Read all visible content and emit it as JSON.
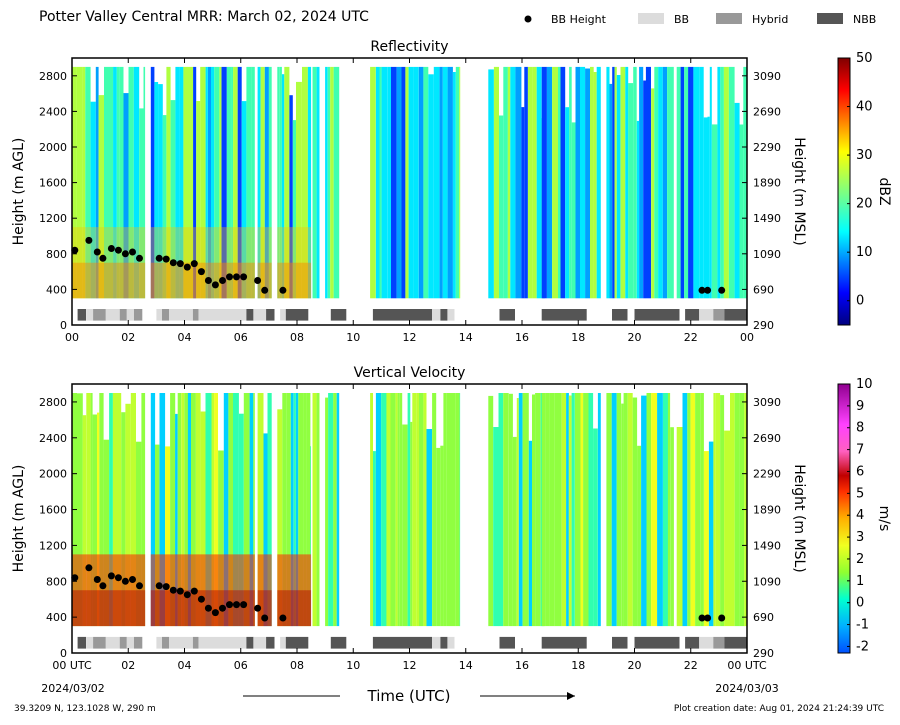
{
  "title": "Potter Valley Central MRR:  March 02, 2024 UTC",
  "legend": [
    {
      "label": "BB Height",
      "kind": "dot",
      "color": "#000000"
    },
    {
      "label": "BB",
      "kind": "box",
      "color": "#dcdcdc"
    },
    {
      "label": "Hybrid",
      "kind": "box",
      "color": "#999999"
    },
    {
      "label": "NBB",
      "kind": "box",
      "color": "#555555"
    }
  ],
  "footer": {
    "coords": "39.3209 N, 123.1028 W, 290 m",
    "created": "Plot creation date: Aug 01, 2024 21:24:39 UTC"
  },
  "chart_data": [
    {
      "type": "heatmap",
      "title": "Reflectivity",
      "ylabel": "Height (m AGL)",
      "ylabel_right": "Height (m MSL)",
      "xlim": [
        0,
        24
      ],
      "ylim": [
        0,
        3000
      ],
      "x_ticks": [
        "00",
        "02",
        "04",
        "06",
        "08",
        "10",
        "12",
        "14",
        "16",
        "18",
        "20",
        "22",
        "00"
      ],
      "y_ticks": [
        0,
        400,
        800,
        1200,
        1600,
        2000,
        2400,
        2800
      ],
      "y_ticks_right": [
        290,
        690,
        1090,
        1490,
        1890,
        2290,
        2690,
        3090
      ],
      "colorbar": {
        "label": "dBZ",
        "min": -5,
        "max": 50,
        "ticks": [
          0,
          10,
          20,
          30,
          40,
          50
        ],
        "palette": "jet"
      }
    },
    {
      "type": "heatmap",
      "title": "Vertical Velocity",
      "ylabel": "Height (m AGL)",
      "ylabel_right": "Height (m MSL)",
      "xlabel": "Time (UTC)",
      "xlim": [
        0,
        24
      ],
      "ylim": [
        0,
        3000
      ],
      "x_ticks": [
        "00 UTC",
        "02",
        "04",
        "06",
        "08",
        "10",
        "12",
        "14",
        "16",
        "18",
        "20",
        "22",
        "00 UTC"
      ],
      "x_dates": [
        "2024/03/02",
        "2024/03/03"
      ],
      "y_ticks": [
        0,
        400,
        800,
        1200,
        1600,
        2000,
        2400,
        2800
      ],
      "y_ticks_right": [
        290,
        690,
        1090,
        1490,
        1890,
        2290,
        2690,
        3090
      ],
      "colorbar": {
        "label": "m/s",
        "min": -2.3,
        "max": 10,
        "ticks": [
          -2,
          -1,
          0,
          1,
          2,
          3,
          4,
          5,
          6,
          7,
          8,
          9,
          10
        ],
        "palette": "velocity"
      }
    }
  ],
  "bright_band_heights": {
    "times": [
      0.1,
      0.6,
      0.9,
      1.1,
      1.4,
      1.65,
      1.9,
      2.15,
      2.4,
      3.1,
      3.35,
      3.6,
      3.85,
      4.1,
      4.35,
      4.6,
      4.85,
      5.1,
      5.35,
      5.6,
      5.85,
      6.1,
      6.6,
      6.85,
      7.5,
      22.4,
      22.6,
      23.1
    ],
    "heights": [
      840,
      950,
      820,
      750,
      860,
      840,
      800,
      820,
      750,
      750,
      740,
      700,
      690,
      650,
      690,
      600,
      500,
      450,
      500,
      540,
      540,
      540,
      500,
      390,
      390,
      390,
      390,
      390
    ]
  },
  "bb_type_segments": [
    {
      "start": 0.2,
      "end": 0.5,
      "type": "NBB"
    },
    {
      "start": 0.5,
      "end": 0.75,
      "type": "BB"
    },
    {
      "start": 0.75,
      "end": 1.2,
      "type": "Hybrid"
    },
    {
      "start": 1.2,
      "end": 1.7,
      "type": "BB"
    },
    {
      "start": 1.7,
      "end": 1.95,
      "type": "Hybrid"
    },
    {
      "start": 1.95,
      "end": 2.2,
      "type": "BB"
    },
    {
      "start": 2.2,
      "end": 2.5,
      "type": "Hybrid"
    },
    {
      "start": 3.0,
      "end": 3.2,
      "type": "BB"
    },
    {
      "start": 3.2,
      "end": 3.45,
      "type": "Hybrid"
    },
    {
      "start": 3.45,
      "end": 4.3,
      "type": "BB"
    },
    {
      "start": 4.3,
      "end": 4.5,
      "type": "Hybrid"
    },
    {
      "start": 4.5,
      "end": 6.2,
      "type": "BB"
    },
    {
      "start": 6.2,
      "end": 6.45,
      "type": "NBB"
    },
    {
      "start": 6.45,
      "end": 6.9,
      "type": "BB"
    },
    {
      "start": 6.9,
      "end": 7.2,
      "type": "NBB"
    },
    {
      "start": 7.4,
      "end": 7.6,
      "type": "BB"
    },
    {
      "start": 7.6,
      "end": 8.4,
      "type": "NBB"
    },
    {
      "start": 9.2,
      "end": 9.75,
      "type": "NBB"
    },
    {
      "start": 10.7,
      "end": 12.8,
      "type": "NBB"
    },
    {
      "start": 12.8,
      "end": 13.1,
      "type": "BB"
    },
    {
      "start": 13.1,
      "end": 13.35,
      "type": "NBB"
    },
    {
      "start": 13.35,
      "end": 13.6,
      "type": "BB"
    },
    {
      "start": 15.2,
      "end": 15.75,
      "type": "NBB"
    },
    {
      "start": 16.7,
      "end": 18.3,
      "type": "NBB"
    },
    {
      "start": 19.2,
      "end": 19.75,
      "type": "NBB"
    },
    {
      "start": 20.0,
      "end": 21.6,
      "type": "NBB"
    },
    {
      "start": 21.8,
      "end": 22.3,
      "type": "NBB"
    },
    {
      "start": 22.3,
      "end": 22.8,
      "type": "BB"
    },
    {
      "start": 22.8,
      "end": 23.2,
      "type": "Hybrid"
    },
    {
      "start": 23.2,
      "end": 24.0,
      "type": "NBB"
    }
  ],
  "echo_columns": [
    {
      "start": 0.0,
      "end": 2.6,
      "top": 3000
    },
    {
      "start": 2.8,
      "end": 6.5,
      "top": 3000
    },
    {
      "start": 6.6,
      "end": 7.1,
      "top": 3000
    },
    {
      "start": 7.3,
      "end": 8.5,
      "top": 3000
    },
    {
      "start": 8.55,
      "end": 8.8,
      "top": 3000
    },
    {
      "start": 9.0,
      "end": 9.5,
      "top": 3000
    },
    {
      "start": 10.6,
      "end": 13.8,
      "top": 3000
    },
    {
      "start": 14.8,
      "end": 16.8,
      "top": 3000
    },
    {
      "start": 16.7,
      "end": 18.8,
      "top": 3000
    },
    {
      "start": 19.0,
      "end": 21.4,
      "top": 3000
    },
    {
      "start": 21.5,
      "end": 24.0,
      "top": 3000
    }
  ]
}
